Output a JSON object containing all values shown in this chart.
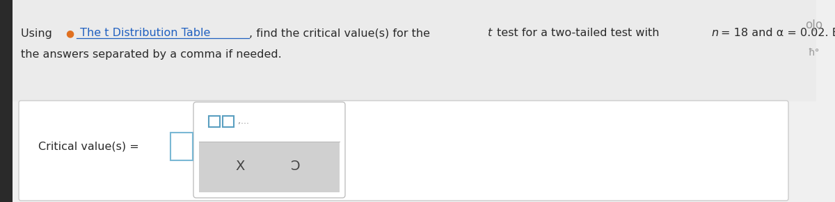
{
  "background_color": "#e8e8e8",
  "main_bg": "#f5f5f5",
  "content_bg": "#ffffff",
  "text_line2": "the answers separated by a comma if needed.",
  "critical_value_label": "Critical value(s) =",
  "answer_box_border": "#7ab8d4",
  "popup_top_fill": "#ffffff",
  "popup_bottom_fill": "#d0d0d0",
  "popup_border": "#c0c0c0",
  "square_icon_color": "#5a9fc0",
  "symbol_x": "X",
  "symbol_undo": "Ɔ",
  "label_fontsize": 11.5,
  "icon_color": "#aaaaaa",
  "circle_color": "#e07020",
  "link_color": "#2060c0",
  "text_color": "#2a2a2a"
}
